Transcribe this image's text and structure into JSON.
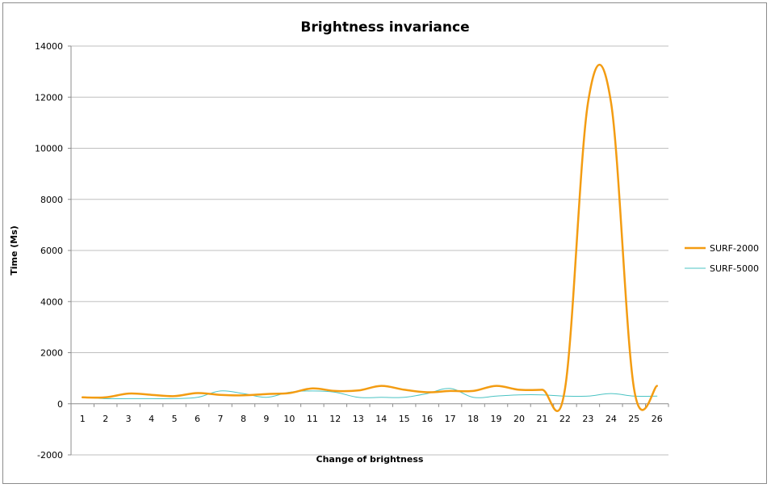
{
  "chart_data": {
    "type": "line",
    "title": "Brightness invariance",
    "xlabel": "Change of brightness",
    "ylabel": "Time (Ms)",
    "ylim": [
      -2000,
      14000
    ],
    "yticks": [
      -2000,
      0,
      2000,
      4000,
      6000,
      8000,
      10000,
      12000,
      14000
    ],
    "grid": true,
    "legend_position": "right",
    "categories": [
      "1",
      "2",
      "3",
      "4",
      "5",
      "6",
      "7",
      "8",
      "9",
      "10",
      "11",
      "12",
      "13",
      "14",
      "15",
      "16",
      "17",
      "18",
      "19",
      "20",
      "21",
      "22",
      "23",
      "24",
      "25",
      "26"
    ],
    "series": [
      {
        "name": "SURF-2000",
        "color": "#f39c12",
        "line_width": 2.5,
        "values": [
          250,
          250,
          400,
          350,
          300,
          420,
          350,
          330,
          380,
          420,
          600,
          500,
          520,
          700,
          550,
          450,
          500,
          500,
          700,
          550,
          550,
          600,
          11800,
          11800,
          600,
          700
        ]
      },
      {
        "name": "SURF-5000",
        "color": "#4bc3c3",
        "line_width": 1,
        "values": [
          250,
          200,
          200,
          200,
          200,
          250,
          500,
          400,
          250,
          450,
          500,
          450,
          250,
          250,
          250,
          400,
          600,
          250,
          300,
          350,
          350,
          300,
          300,
          400,
          300,
          300
        ]
      }
    ]
  }
}
